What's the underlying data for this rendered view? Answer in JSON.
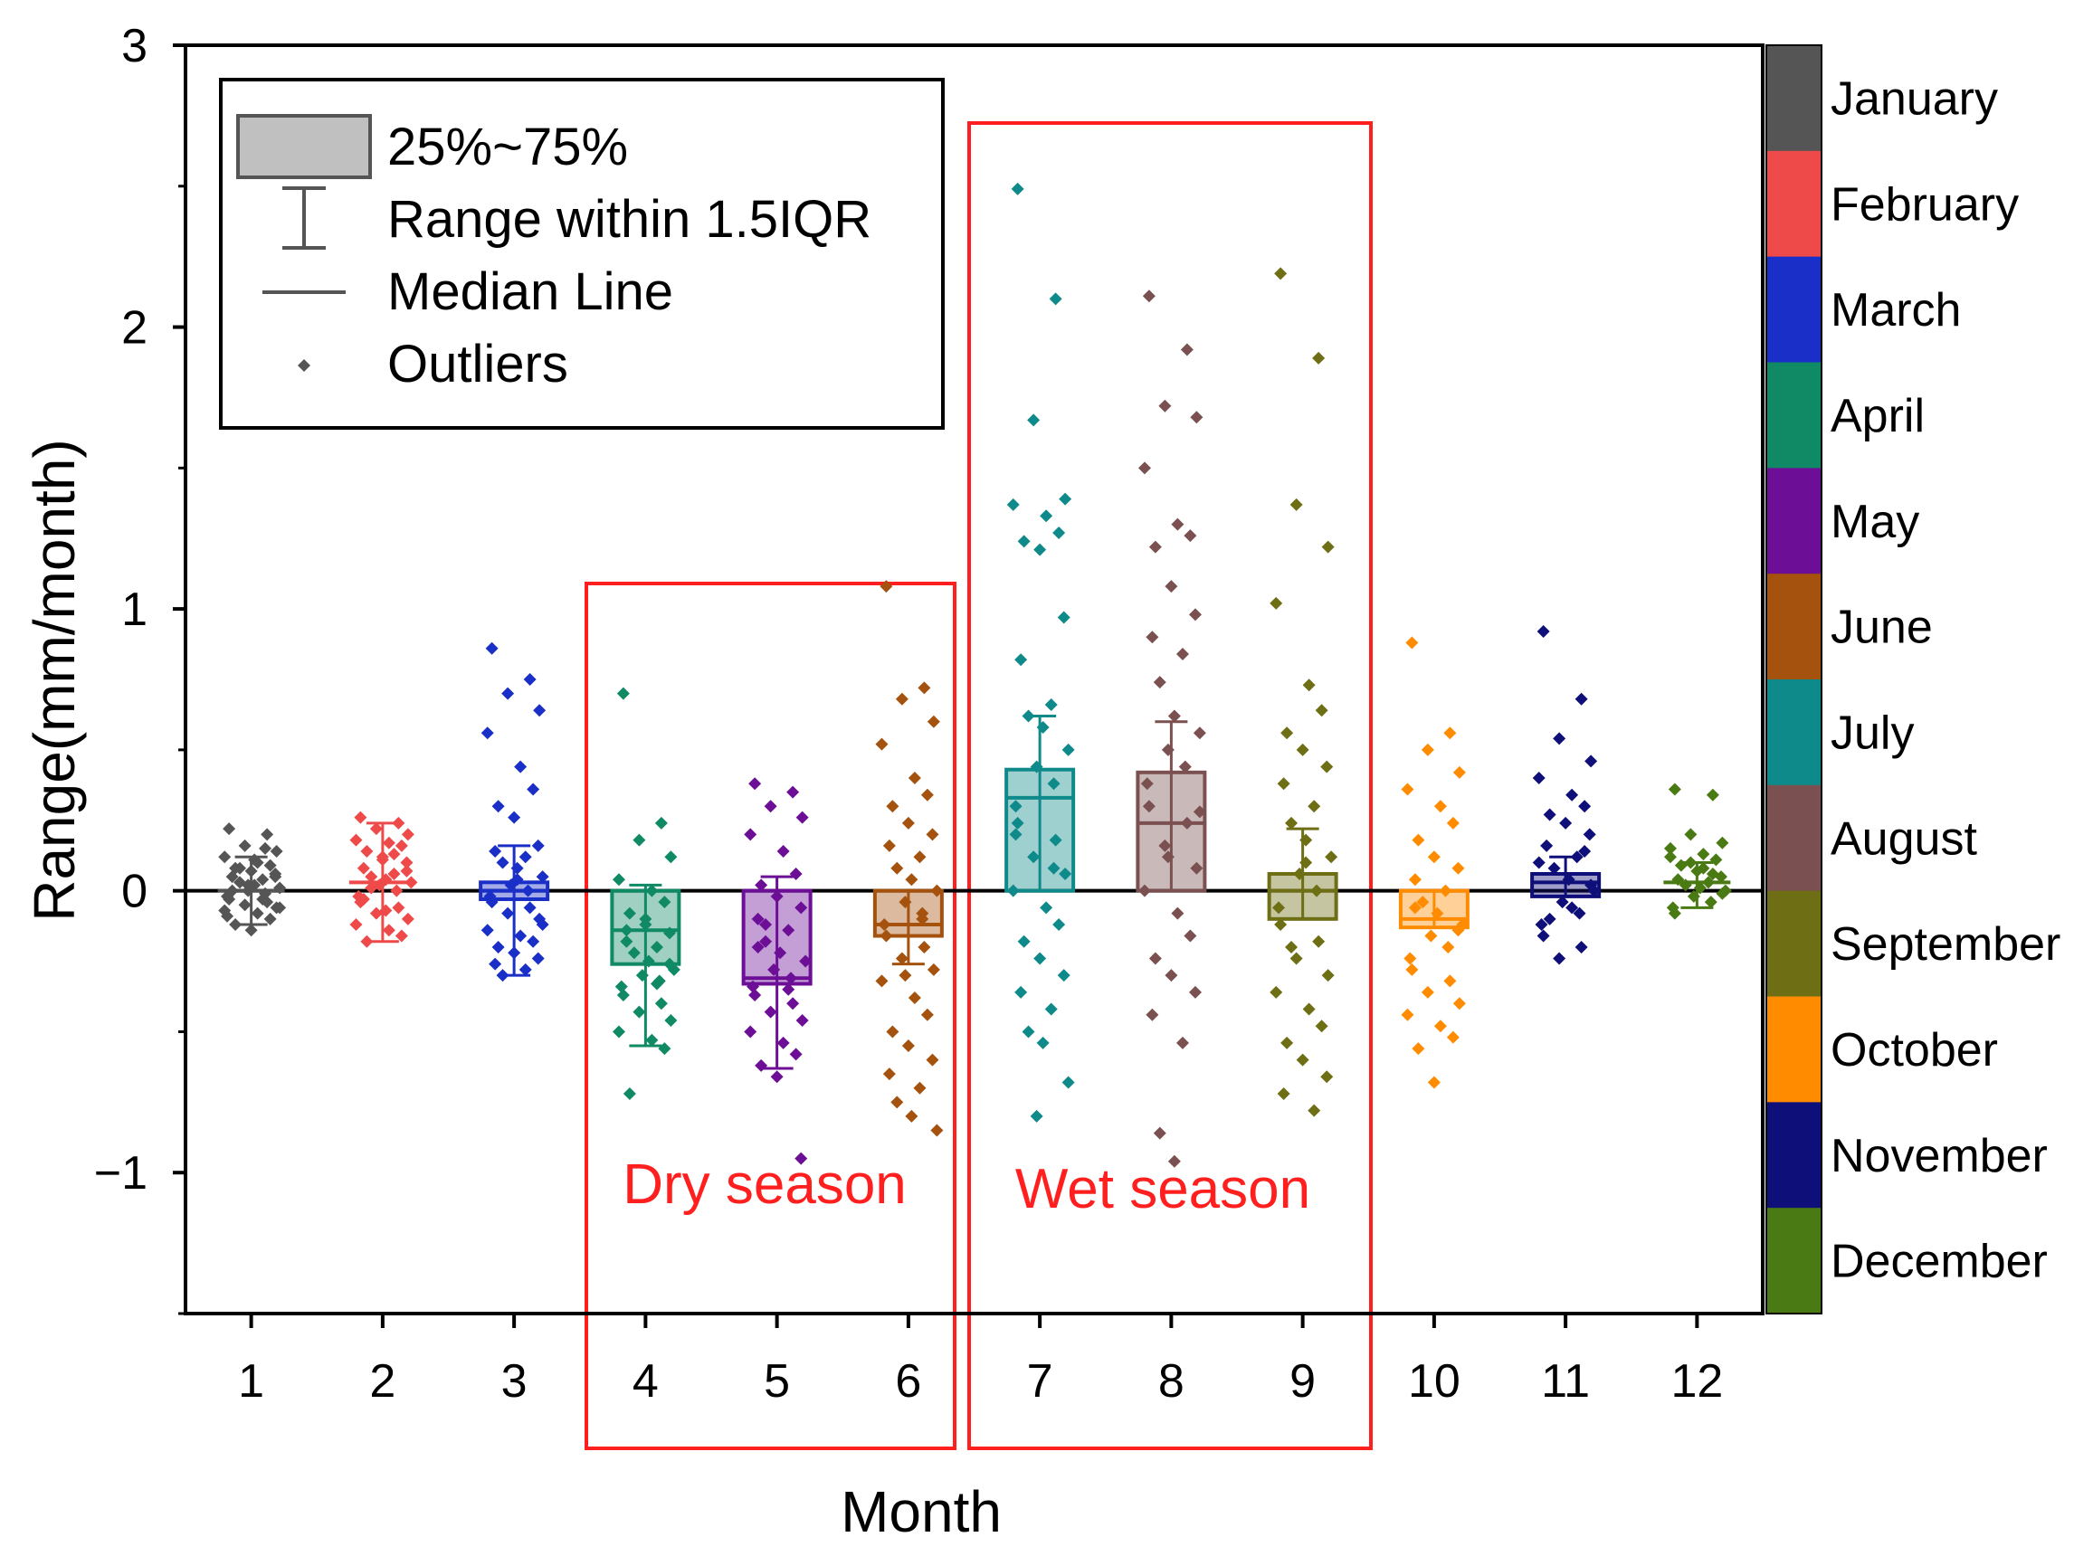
{
  "chart_data": {
    "type": "box",
    "xlabel": "Month",
    "ylabel": "Range(mm/month)",
    "ylim": [
      -1.5,
      3
    ],
    "yticks": [
      -1,
      0,
      1,
      2,
      3
    ],
    "ytick_labels": [
      "−1",
      "0",
      "1",
      "2",
      "3"
    ],
    "categories": [
      "1",
      "2",
      "3",
      "4",
      "5",
      "6",
      "7",
      "8",
      "9",
      "10",
      "11",
      "12"
    ],
    "legend": {
      "box": "25%~75%",
      "whisker": "Range within 1.5IQR",
      "median": "Median Line",
      "outliers": "Outliers"
    },
    "regions": [
      {
        "label": "Dry season",
        "from_month": 4,
        "to_month": 6,
        "color": "#ff1f1f"
      },
      {
        "label": "Wet season",
        "from_month": 7,
        "to_month": 9,
        "color": "#ff1f1f"
      }
    ],
    "colorbar": [
      {
        "name": "January",
        "color": "#555555"
      },
      {
        "name": "February",
        "color": "#ef4a4a"
      },
      {
        "name": "March",
        "color": "#1a2fc8"
      },
      {
        "name": "April",
        "color": "#0f8a64"
      },
      {
        "name": "May",
        "color": "#6c0f96"
      },
      {
        "name": "June",
        "color": "#a4520e"
      },
      {
        "name": "July",
        "color": "#0f8a8a"
      },
      {
        "name": "August",
        "color": "#7a5050"
      },
      {
        "name": "September",
        "color": "#6e6e14"
      },
      {
        "name": "October",
        "color": "#ff8c00"
      },
      {
        "name": "November",
        "color": "#0f0f7a"
      },
      {
        "name": "December",
        "color": "#4a7a14"
      }
    ],
    "series": [
      {
        "month": 1,
        "q1": -0.05,
        "q3": 0.05,
        "median": 0.0,
        "whisker_low": -0.12,
        "whisker_high": 0.12,
        "box_visible": false,
        "points": [
          0.22,
          0.2,
          0.16,
          0.14,
          0.12,
          0.1,
          0.09,
          0.08,
          0.07,
          0.06,
          0.05,
          0.04,
          0.03,
          0.02,
          0.01,
          0.0,
          -0.01,
          -0.02,
          -0.03,
          -0.04,
          -0.05,
          -0.06,
          -0.07,
          -0.08,
          -0.1,
          -0.12,
          -0.14,
          0.05,
          0.0,
          -0.03,
          0.08,
          0.11,
          -0.06,
          0.02,
          0.15,
          -0.09
        ]
      },
      {
        "month": 2,
        "q1": -0.02,
        "q3": 0.06,
        "median": 0.03,
        "whisker_low": -0.18,
        "whisker_high": 0.24,
        "box_visible": false,
        "points": [
          0.26,
          0.24,
          0.22,
          0.2,
          0.18,
          0.17,
          0.16,
          0.14,
          0.12,
          0.1,
          0.08,
          0.06,
          0.05,
          0.04,
          0.03,
          0.02,
          0.0,
          -0.02,
          -0.04,
          -0.06,
          -0.08,
          -0.1,
          -0.12,
          -0.14,
          -0.16,
          -0.18,
          0.11,
          0.07,
          -0.03,
          0.13,
          0.01,
          -0.07
        ]
      },
      {
        "month": 3,
        "q1": -0.03,
        "q3": 0.03,
        "median": 0.0,
        "whisker_low": -0.3,
        "whisker_high": 0.16,
        "box_visible": true,
        "points": [
          0.86,
          0.75,
          0.7,
          0.64,
          0.56,
          0.44,
          0.36,
          0.3,
          0.26,
          0.16,
          0.14,
          0.12,
          0.1,
          0.08,
          0.05,
          0.02,
          0.0,
          -0.02,
          -0.04,
          -0.06,
          -0.08,
          -0.1,
          -0.14,
          -0.16,
          -0.18,
          -0.2,
          -0.22,
          -0.24,
          -0.26,
          -0.28,
          -0.3,
          0.04,
          -0.12
        ]
      },
      {
        "month": 4,
        "q1": -0.26,
        "q3": 0.0,
        "median": -0.14,
        "whisker_low": -0.55,
        "whisker_high": 0.02,
        "box_visible": true,
        "points": [
          0.7,
          0.24,
          0.18,
          0.12,
          0.04,
          0.0,
          -0.04,
          -0.08,
          -0.12,
          -0.15,
          -0.18,
          -0.2,
          -0.22,
          -0.25,
          -0.28,
          -0.3,
          -0.32,
          -0.34,
          -0.37,
          -0.4,
          -0.43,
          -0.46,
          -0.5,
          -0.53,
          -0.56,
          -0.72,
          -0.1,
          -0.26,
          -0.14,
          -0.33
        ]
      },
      {
        "month": 5,
        "q1": -0.33,
        "q3": 0.0,
        "median": -0.31,
        "whisker_low": -0.63,
        "whisker_high": 0.05,
        "box_visible": true,
        "points": [
          0.38,
          0.35,
          0.3,
          0.26,
          0.2,
          0.14,
          0.06,
          0.02,
          -0.02,
          -0.06,
          -0.1,
          -0.14,
          -0.18,
          -0.22,
          -0.25,
          -0.28,
          -0.31,
          -0.34,
          -0.37,
          -0.4,
          -0.43,
          -0.46,
          -0.5,
          -0.54,
          -0.58,
          -0.62,
          -0.66,
          -0.95,
          -0.2,
          -0.35,
          -0.12
        ]
      },
      {
        "month": 6,
        "q1": -0.16,
        "q3": 0.0,
        "median": -0.12,
        "whisker_low": -0.26,
        "whisker_high": 0.0,
        "box_visible": true,
        "points": [
          1.08,
          0.72,
          0.68,
          0.6,
          0.52,
          0.4,
          0.34,
          0.3,
          0.24,
          0.2,
          0.16,
          0.12,
          0.08,
          0.04,
          0.0,
          -0.04,
          -0.08,
          -0.12,
          -0.16,
          -0.2,
          -0.24,
          -0.28,
          -0.32,
          -0.38,
          -0.44,
          -0.5,
          -0.55,
          -0.6,
          -0.65,
          -0.7,
          -0.75,
          -0.8,
          -0.85,
          -0.3,
          -0.1
        ]
      },
      {
        "month": 7,
        "q1": 0.0,
        "q3": 0.43,
        "median": 0.33,
        "whisker_low": 0.0,
        "whisker_high": 0.62,
        "box_visible": true,
        "points": [
          2.49,
          2.1,
          1.67,
          1.39,
          1.37,
          1.33,
          1.27,
          1.24,
          1.21,
          0.97,
          0.82,
          0.66,
          0.62,
          0.58,
          0.5,
          0.44,
          0.38,
          0.3,
          0.24,
          0.18,
          0.12,
          0.06,
          0.0,
          -0.06,
          -0.12,
          -0.18,
          -0.24,
          -0.3,
          -0.36,
          -0.42,
          -0.5,
          -0.54,
          -0.68,
          -0.8,
          0.08,
          0.2
        ]
      },
      {
        "month": 8,
        "q1": 0.0,
        "q3": 0.42,
        "median": 0.24,
        "whisker_low": 0.0,
        "whisker_high": 0.6,
        "box_visible": true,
        "points": [
          2.11,
          1.92,
          1.72,
          1.68,
          1.5,
          1.3,
          1.26,
          1.22,
          1.08,
          0.98,
          0.9,
          0.84,
          0.74,
          0.62,
          0.56,
          0.5,
          0.44,
          0.38,
          0.3,
          0.24,
          0.16,
          0.08,
          0.0,
          -0.08,
          -0.16,
          -0.24,
          -0.3,
          -0.36,
          -0.44,
          -0.54,
          -0.86,
          -0.96,
          0.28,
          0.12
        ]
      },
      {
        "month": 9,
        "q1": -0.1,
        "q3": 0.06,
        "median": 0.0,
        "whisker_low": -0.1,
        "whisker_high": 0.22,
        "box_visible": true,
        "points": [
          2.19,
          1.89,
          1.37,
          1.22,
          1.02,
          0.73,
          0.64,
          0.56,
          0.5,
          0.44,
          0.38,
          0.3,
          0.24,
          0.18,
          0.12,
          0.06,
          0.0,
          -0.06,
          -0.12,
          -0.18,
          -0.24,
          -0.3,
          -0.36,
          -0.42,
          -0.48,
          -0.54,
          -0.6,
          -0.66,
          -0.72,
          -0.78,
          -0.2,
          0.1
        ]
      },
      {
        "month": 10,
        "q1": -0.13,
        "q3": 0.0,
        "median": -0.1,
        "whisker_low": -0.13,
        "whisker_high": 0.0,
        "box_visible": true,
        "points": [
          0.88,
          0.56,
          0.5,
          0.42,
          0.36,
          0.3,
          0.24,
          0.18,
          0.12,
          0.08,
          0.04,
          0.0,
          -0.04,
          -0.08,
          -0.12,
          -0.16,
          -0.2,
          -0.24,
          -0.28,
          -0.32,
          -0.36,
          -0.4,
          -0.44,
          -0.48,
          -0.52,
          -0.56,
          -0.68,
          -0.14,
          -0.06
        ]
      },
      {
        "month": 11,
        "q1": -0.02,
        "q3": 0.06,
        "median": 0.03,
        "whisker_low": -0.02,
        "whisker_high": 0.12,
        "box_visible": true,
        "points": [
          0.92,
          0.68,
          0.54,
          0.46,
          0.4,
          0.34,
          0.3,
          0.27,
          0.24,
          0.2,
          0.16,
          0.12,
          0.08,
          0.04,
          0.0,
          -0.04,
          -0.08,
          -0.12,
          -0.16,
          -0.2,
          -0.24,
          0.02,
          0.1,
          -0.06,
          0.14,
          -0.1
        ]
      },
      {
        "month": 12,
        "q1": 0.0,
        "q3": 0.05,
        "median": 0.03,
        "whisker_low": -0.06,
        "whisker_high": 0.1,
        "box_visible": false,
        "points": [
          0.36,
          0.34,
          0.2,
          0.17,
          0.15,
          0.13,
          0.11,
          0.09,
          0.07,
          0.05,
          0.04,
          0.03,
          0.02,
          0.01,
          0.0,
          -0.02,
          -0.04,
          -0.06,
          -0.08,
          0.06,
          0.1,
          -0.01,
          0.12,
          0.08
        ]
      }
    ]
  }
}
